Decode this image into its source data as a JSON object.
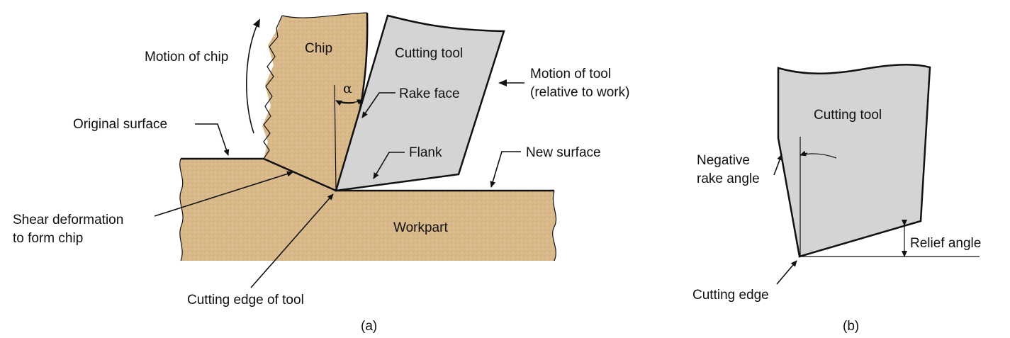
{
  "colors": {
    "workpiece": "#d9b98a",
    "tool": "#d4d4d4",
    "outline": "#111111"
  },
  "panel_a": {
    "caption": "(a)",
    "labels": {
      "motion_of_chip": "Motion of chip",
      "chip": "Chip",
      "cutting_tool": "Cutting tool",
      "motion_of_tool_1": "Motion of tool",
      "motion_of_tool_2": "(relative to work)",
      "alpha": "α",
      "rake_face": "Rake face",
      "original_surface": "Original surface",
      "flank": "Flank",
      "new_surface": "New surface",
      "shear_1": "Shear deformation",
      "shear_2": "to form chip",
      "workpart": "Workpart",
      "cutting_edge_of_tool": "Cutting edge of tool"
    }
  },
  "panel_b": {
    "caption": "(b)",
    "labels": {
      "cutting_tool": "Cutting tool",
      "negative_1": "Negative",
      "negative_2": "rake angle",
      "relief_angle": "Relief angle",
      "cutting_edge": "Cutting edge"
    }
  }
}
